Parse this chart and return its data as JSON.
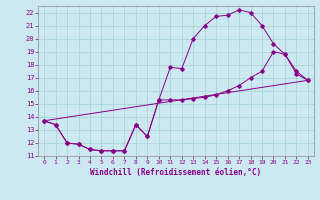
{
  "xlabel": "Windchill (Refroidissement éolien,°C)",
  "bg_color": "#cce8f0",
  "line_color": "#880088",
  "grid_color": "#99cccc",
  "xlim": [
    -0.5,
    23.5
  ],
  "ylim": [
    11,
    22.5
  ],
  "xticks": [
    0,
    1,
    2,
    3,
    4,
    5,
    6,
    7,
    8,
    9,
    10,
    11,
    12,
    13,
    14,
    15,
    16,
    17,
    18,
    19,
    20,
    21,
    22,
    23
  ],
  "yticks": [
    11,
    12,
    13,
    14,
    15,
    16,
    17,
    18,
    19,
    20,
    21,
    22
  ],
  "series1_x": [
    0,
    1,
    2,
    3,
    4,
    5,
    6,
    7,
    8,
    9,
    10,
    11,
    12,
    13,
    14,
    15,
    16,
    17,
    18,
    19,
    20,
    21,
    22,
    23
  ],
  "series1_y": [
    13.7,
    13.4,
    12.0,
    11.9,
    11.5,
    11.4,
    11.4,
    11.4,
    13.4,
    12.5,
    15.3,
    17.8,
    17.7,
    20.0,
    21.0,
    21.7,
    21.8,
    22.2,
    22.0,
    21.0,
    19.6,
    18.8,
    17.3,
    16.8
  ],
  "series2_x": [
    0,
    1,
    2,
    3,
    4,
    5,
    6,
    7,
    8,
    9,
    10,
    11,
    12,
    13,
    14,
    15,
    16,
    17,
    18,
    19,
    20,
    21,
    22,
    23
  ],
  "series2_y": [
    13.7,
    13.4,
    12.0,
    11.9,
    11.5,
    11.4,
    11.4,
    11.4,
    13.4,
    12.5,
    15.3,
    15.3,
    15.3,
    15.4,
    15.5,
    15.7,
    16.0,
    16.4,
    17.0,
    17.5,
    19.0,
    18.8,
    17.5,
    16.8
  ],
  "series3_x": [
    0,
    23
  ],
  "series3_y": [
    13.7,
    16.8
  ]
}
